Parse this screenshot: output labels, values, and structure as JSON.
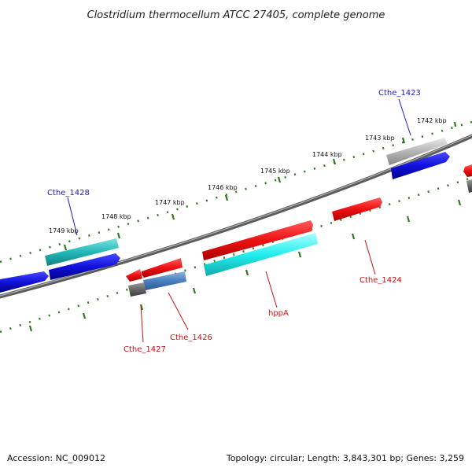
{
  "title": "Clostridium thermocellum ATCC 27405, complete genome",
  "footer": {
    "accession": "Accession: NC_009012",
    "summary": "Topology: circular; Length: 3,843,301 bp; Genes: 3,259"
  },
  "kbp_ticks": [
    "1742 kbp",
    "1743 kbp",
    "1744 kbp",
    "1745 kbp",
    "1746 kbp",
    "1747 kbp",
    "1748 kbp",
    "1749 kbp"
  ],
  "gene_labels": {
    "cthe_1423": "Cthe_1423",
    "cthe_1428": "Cthe_1428",
    "cthe_1424": "Cthe_1424",
    "hppA": "hppA",
    "cthe_1427": "Cthe_1427",
    "cthe_1426": "Cthe_1426"
  },
  "colors": {
    "forward_label": "#1a1acc",
    "reverse_label": "#cc1111",
    "tick_green": "#2f7a1f",
    "backbone": "#6e6e6e",
    "cds_red": "#ee1111",
    "cds_blue": "#1111dd",
    "rna_cyan": "#22dddd",
    "teal": "#20b2b2",
    "grey": "#8a8a8a",
    "steel": "#4a7fbf"
  }
}
